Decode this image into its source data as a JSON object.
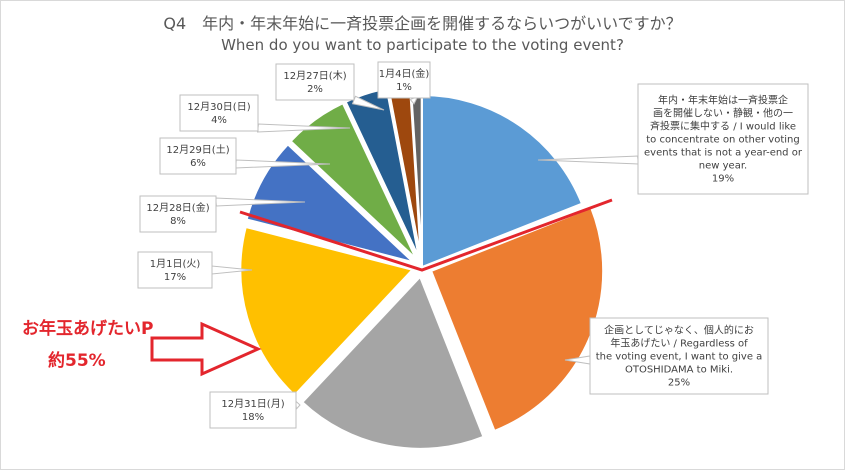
{
  "title": {
    "line1": "Q4　年内・年末年始に一斉投票企画を開催するならいつがいいですか？",
    "line2": "When do you want to participate to the voting event?"
  },
  "annotation": {
    "label": "お年玉あげたいP",
    "percent": "約55%",
    "color": "#e3262d"
  },
  "chart_data": {
    "type": "pie",
    "title": "Q4　年内・年末年始に一斉投票企画を開催するならいつがいいですか？ / When do you want to participate to the voting event?",
    "slices": [
      {
        "label_lines": [
          "年内・年末年始は一斉投票企",
          "画を開催しない・静観・他の一",
          "斉投票に集中する / I would like",
          "to concentrate on other voting",
          "events that is not a year-end or",
          "new year."
        ],
        "value": 19,
        "pct": "19%",
        "color": "#5b9bd5"
      },
      {
        "label_lines": [
          "企画としてじゃなく、個人的にお",
          "年玉あげたい / Regardless of",
          "the voting event, I want to give a",
          "OTOSHIDAMA to Miki."
        ],
        "value": 25,
        "pct": "25%",
        "color": "#ed7d31"
      },
      {
        "label_lines": [
          "12月31日(月)"
        ],
        "value": 18,
        "pct": "18%",
        "color": "#a5a5a5"
      },
      {
        "label_lines": [
          "1月1日(火)"
        ],
        "value": 17,
        "pct": "17%",
        "color": "#ffc000"
      },
      {
        "label_lines": [
          "12月28日(金)"
        ],
        "value": 8,
        "pct": "8%",
        "color": "#4472c4"
      },
      {
        "label_lines": [
          "12月29日(土)"
        ],
        "value": 6,
        "pct": "6%",
        "color": "#70ad47"
      },
      {
        "label_lines": [
          "12月30日(日)"
        ],
        "value": 4,
        "pct": "4%",
        "color": "#255e91"
      },
      {
        "label_lines": [
          "12月27日(木)"
        ],
        "value": 2,
        "pct": "2%",
        "color": "#9e480e"
      },
      {
        "label_lines": [
          "1月4日(金)"
        ],
        "value": 1,
        "pct": "1%",
        "color": "#636363"
      }
    ]
  }
}
